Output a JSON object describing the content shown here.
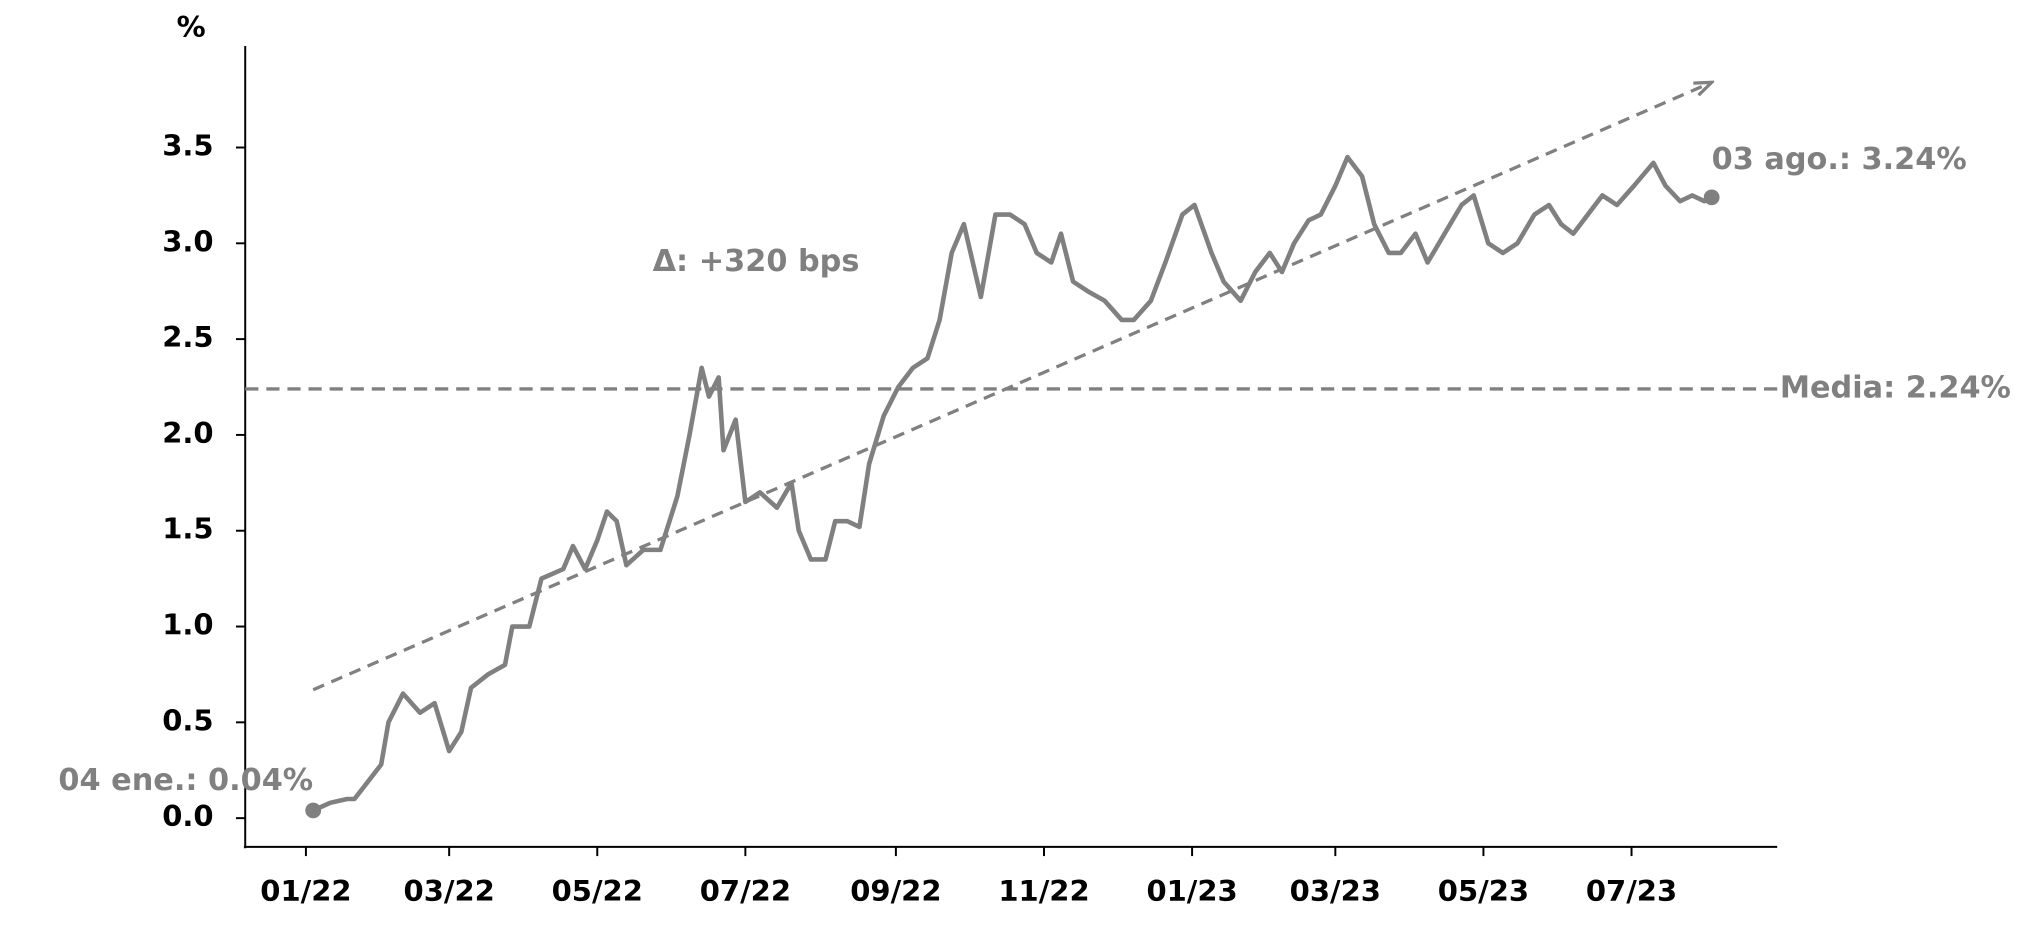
{
  "chart_data": {
    "type": "line",
    "y_label": "%",
    "x": [
      "2022-01-04",
      "2022-01-11",
      "2022-01-18",
      "2022-01-21",
      "2022-02-01",
      "2022-02-04",
      "2022-02-10",
      "2022-02-17",
      "2022-02-23",
      "2022-03-01",
      "2022-03-06",
      "2022-03-10",
      "2022-03-17",
      "2022-03-24",
      "2022-03-27",
      "2022-04-03",
      "2022-04-08",
      "2022-04-17",
      "2022-04-21",
      "2022-04-26",
      "2022-05-01",
      "2022-05-05",
      "2022-05-09",
      "2022-05-13",
      "2022-05-20",
      "2022-05-27",
      "2022-06-03",
      "2022-06-08",
      "2022-06-13",
      "2022-06-16",
      "2022-06-20",
      "2022-06-22",
      "2022-06-27",
      "2022-07-01",
      "2022-07-07",
      "2022-07-14",
      "2022-07-20",
      "2022-07-23",
      "2022-07-28",
      "2022-08-03",
      "2022-08-07",
      "2022-08-12",
      "2022-08-17",
      "2022-08-21",
      "2022-08-27",
      "2022-09-02",
      "2022-09-08",
      "2022-09-14",
      "2022-09-19",
      "2022-09-24",
      "2022-09-29",
      "2022-10-06",
      "2022-10-12",
      "2022-10-18",
      "2022-10-24",
      "2022-10-29",
      "2022-11-04",
      "2022-11-08",
      "2022-11-13",
      "2022-11-19",
      "2022-11-26",
      "2022-12-03",
      "2022-12-08",
      "2022-12-15",
      "2022-12-21",
      "2022-12-28",
      "2023-01-02",
      "2023-01-09",
      "2023-01-14",
      "2023-01-21",
      "2023-01-27",
      "2023-02-02",
      "2023-02-07",
      "2023-02-12",
      "2023-02-18",
      "2023-02-23",
      "2023-03-01",
      "2023-03-06",
      "2023-03-12",
      "2023-03-17",
      "2023-03-23",
      "2023-03-28",
      "2023-04-03",
      "2023-04-08",
      "2023-04-15",
      "2023-04-22",
      "2023-04-27",
      "2023-05-03",
      "2023-05-09",
      "2023-05-15",
      "2023-05-22",
      "2023-05-28",
      "2023-06-02",
      "2023-06-07",
      "2023-06-13",
      "2023-06-19",
      "2023-06-25",
      "2023-07-02",
      "2023-07-10",
      "2023-07-15",
      "2023-07-21",
      "2023-07-26",
      "2023-07-31",
      "2023-08-03"
    ],
    "series": [
      {
        "color": "#808080",
        "values": [
          0.04,
          0.08,
          0.1,
          0.1,
          0.28,
          0.5,
          0.65,
          0.55,
          0.6,
          0.35,
          0.45,
          0.68,
          0.75,
          0.8,
          1.0,
          1.0,
          1.25,
          1.3,
          1.42,
          1.3,
          1.45,
          1.6,
          1.55,
          1.32,
          1.4,
          1.4,
          1.68,
          2.0,
          2.35,
          2.2,
          2.3,
          1.92,
          2.08,
          1.65,
          1.7,
          1.62,
          1.75,
          1.5,
          1.35,
          1.35,
          1.55,
          1.55,
          1.52,
          1.85,
          2.1,
          2.25,
          2.35,
          2.4,
          2.6,
          2.95,
          3.1,
          2.72,
          3.15,
          3.15,
          3.1,
          2.95,
          2.9,
          3.05,
          2.8,
          2.75,
          2.7,
          2.6,
          2.6,
          2.7,
          2.9,
          3.15,
          3.2,
          2.95,
          2.8,
          2.7,
          2.85,
          2.95,
          2.85,
          3.0,
          3.12,
          3.15,
          3.3,
          3.45,
          3.35,
          3.1,
          2.95,
          2.95,
          3.05,
          2.9,
          3.05,
          3.2,
          3.25,
          3.0,
          2.95,
          3.0,
          3.15,
          3.2,
          3.1,
          3.05,
          3.15,
          3.25,
          3.2,
          3.3,
          3.42,
          3.3,
          3.22,
          3.25,
          3.22,
          3.24
        ]
      }
    ],
    "xlim": [
      "2021-12-07",
      "2023-08-30"
    ],
    "ylim": [
      -0.15,
      4.03
    ],
    "xticks": [
      {
        "value": "2022-01-01",
        "label": "01/22"
      },
      {
        "value": "2022-03-01",
        "label": "03/22"
      },
      {
        "value": "2022-05-01",
        "label": "05/22"
      },
      {
        "value": "2022-07-01",
        "label": "07/22"
      },
      {
        "value": "2022-09-01",
        "label": "09/22"
      },
      {
        "value": "2022-11-01",
        "label": "11/22"
      },
      {
        "value": "2023-01-01",
        "label": "01/23"
      },
      {
        "value": "2023-03-01",
        "label": "03/23"
      },
      {
        "value": "2023-05-01",
        "label": "05/23"
      },
      {
        "value": "2023-07-01",
        "label": "07/23"
      }
    ],
    "yticks": [
      {
        "value": 0,
        "label": "0.0"
      },
      0.5,
      {
        "value": 1,
        "label": "1.0"
      },
      1.5,
      {
        "value": 2,
        "label": "2.0"
      },
      2.5,
      {
        "value": 3,
        "label": "3.0"
      },
      3.5
    ],
    "mean": {
      "value": 2.24,
      "label": "Media: 2.24%"
    },
    "trend": {
      "x": [
        "2022-01-04",
        "2023-08-03"
      ],
      "values": [
        0.67,
        3.84
      ]
    },
    "start_label": "04 ene.: 0.04%",
    "end_label": "03 ago.: 3.24%",
    "delta_label": "Δ: +320 bps"
  }
}
